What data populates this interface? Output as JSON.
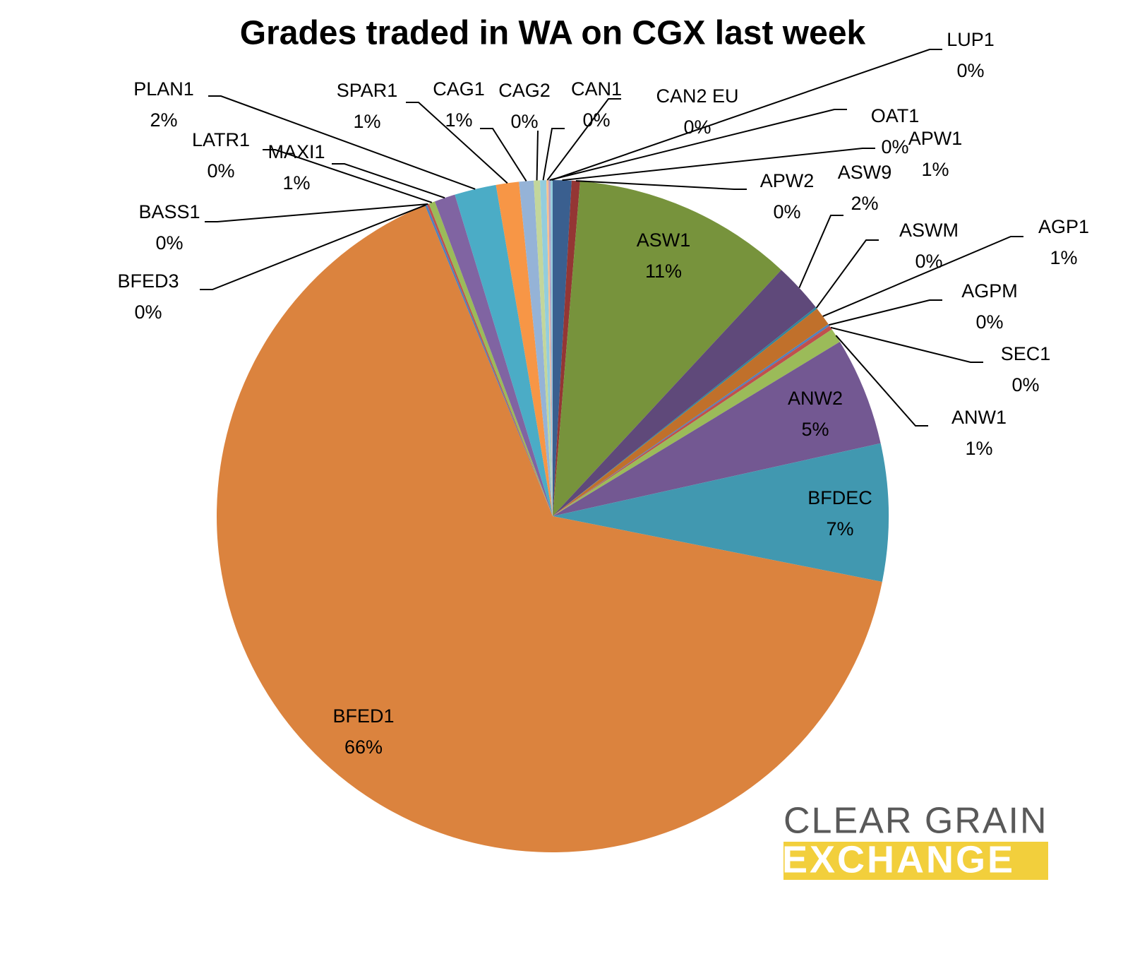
{
  "chart_data": {
    "type": "pie",
    "title": "Grades traded in WA on CGX last week",
    "categories": [
      "APW1",
      "APW2",
      "ASW1",
      "ASW9",
      "ASWM",
      "AGP1",
      "AGPM",
      "SEC1",
      "ANW1",
      "ANW2",
      "BFDEC",
      "BFED1",
      "BFED3",
      "BASS1",
      "LATR1",
      "MAXI1",
      "PLAN1",
      "SPAR1",
      "CAG1",
      "CAG2",
      "CAN1",
      "CAN2 EU",
      "OAT1",
      "LUP1"
    ],
    "values": [
      0.9,
      0.4,
      10.6,
      2.4,
      0.1,
      0.9,
      0.1,
      0.2,
      0.7,
      5.2,
      6.6,
      65.6,
      0.1,
      0.1,
      0.3,
      1.0,
      2.0,
      1.1,
      0.7,
      0.3,
      0.3,
      0.1,
      0.1,
      0.1
    ],
    "value_labels": [
      "1%",
      "0%",
      "11%",
      "2%",
      "0%",
      "1%",
      "0%",
      "0%",
      "1%",
      "5%",
      "7%",
      "66%",
      "0%",
      "0%",
      "0%",
      "1%",
      "2%",
      "1%",
      "1%",
      "0%",
      "0%",
      "0%",
      "0%",
      "0%"
    ],
    "colors": [
      "#3a5f8f",
      "#943634",
      "#77933c",
      "#5f497a",
      "#31859c",
      "#c0702b",
      "#4f81bd",
      "#c0504d",
      "#9bbb59",
      "#735892",
      "#4198b0",
      "#db833e",
      "#4f81bd",
      "#c0504d",
      "#9bbb59",
      "#8064a2",
      "#4bacc6",
      "#f79646",
      "#95b3d7",
      "#c3d69b",
      "#93cddd",
      "#fac090",
      "#b3a2c7",
      "#93cddd"
    ]
  },
  "logo": {
    "line1": "CLEAR GRAIN",
    "line2": "EXCHANGE"
  }
}
